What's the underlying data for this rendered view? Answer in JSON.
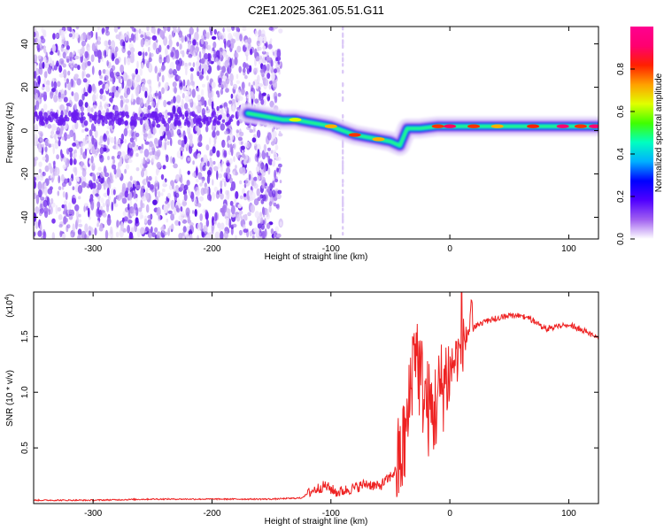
{
  "title": "C2E1.2025.361.05.51.G11",
  "colors": {
    "spectrogram_ramp": [
      "#ffffff",
      "#dcc8f8",
      "#b48cf2",
      "#7b2cf0",
      "#3a10e8",
      "#0000ff",
      "#00c0ff",
      "#00ffb0",
      "#4cff00",
      "#d8ff00",
      "#ffb000",
      "#ff3000",
      "#ff0080"
    ],
    "snr_line": "#ee2222",
    "axes": "#000000"
  },
  "chart_data": [
    {
      "type": "heatmap",
      "name": "spectrogram",
      "xlabel": "Height of straight line (km)",
      "ylabel": "Frequency (Hz)",
      "xlim": [
        -350,
        125
      ],
      "ylim": [
        -50,
        48
      ],
      "xticks": [
        -300,
        -200,
        -100,
        0,
        100
      ],
      "yticks": [
        -40,
        -20,
        0,
        20,
        40
      ],
      "noise_region_x": [
        -350,
        -142
      ],
      "ridge": [
        {
          "x": -170,
          "y": 8
        },
        {
          "x": -160,
          "y": 7
        },
        {
          "x": -150,
          "y": 6
        },
        {
          "x": -140,
          "y": 5
        },
        {
          "x": -130,
          "y": 5
        },
        {
          "x": -120,
          "y": 4
        },
        {
          "x": -110,
          "y": 3
        },
        {
          "x": -100,
          "y": 2
        },
        {
          "x": -90,
          "y": 0
        },
        {
          "x": -80,
          "y": -2
        },
        {
          "x": -70,
          "y": -3
        },
        {
          "x": -60,
          "y": -4
        },
        {
          "x": -50,
          "y": -5
        },
        {
          "x": -42,
          "y": -7
        },
        {
          "x": -36,
          "y": 1
        },
        {
          "x": -25,
          "y": 1
        },
        {
          "x": -10,
          "y": 2
        },
        {
          "x": 0,
          "y": 2
        },
        {
          "x": 20,
          "y": 2
        },
        {
          "x": 40,
          "y": 2
        },
        {
          "x": 60,
          "y": 2
        },
        {
          "x": 80,
          "y": 2
        },
        {
          "x": 100,
          "y": 2
        },
        {
          "x": 125,
          "y": 2
        }
      ],
      "colorbar": {
        "label": "Normalized spectral amplitude",
        "range": [
          0,
          1
        ],
        "ticks": [
          0.0,
          0.2,
          0.4,
          0.6,
          0.8
        ],
        "tick_labels": [
          "0.0",
          "0.2",
          "0.4",
          "0.6",
          "0.8"
        ]
      }
    },
    {
      "type": "line",
      "name": "snr",
      "xlabel": "Height of straight line (km)",
      "ylabel": "SNR (10 * v/v)",
      "exponent_label": "(x10",
      "exponent_power": "4",
      "exponent_close": ")",
      "xlim": [
        -350,
        125
      ],
      "ylim": [
        0,
        1.9
      ],
      "xticks": [
        -300,
        -200,
        -100,
        0,
        100
      ],
      "yticks": [
        0.5,
        1.0,
        1.5
      ],
      "ytick_labels": [
        "0.5",
        "1.0",
        "1.5"
      ],
      "series": [
        {
          "values": [
            [
              -350,
              0.03
            ],
            [
              -300,
              0.03
            ],
            [
              -250,
              0.04
            ],
            [
              -200,
              0.04
            ],
            [
              -150,
              0.04
            ],
            [
              -125,
              0.05
            ],
            [
              -115,
              0.12
            ],
            [
              -105,
              0.16
            ],
            [
              -95,
              0.1
            ],
            [
              -80,
              0.14
            ],
            [
              -70,
              0.18
            ],
            [
              -60,
              0.15
            ],
            [
              -52,
              0.22
            ],
            [
              -45,
              0.3
            ],
            [
              -40,
              0.45
            ],
            [
              -35,
              0.75
            ],
            [
              -32,
              1.2
            ],
            [
              -29,
              1.5
            ],
            [
              -26,
              1.2
            ],
            [
              -22,
              1.0
            ],
            [
              -18,
              0.85
            ],
            [
              -14,
              0.8
            ],
            [
              -10,
              0.95
            ],
            [
              -5,
              1.1
            ],
            [
              0,
              1.2
            ],
            [
              5,
              1.3
            ],
            [
              10,
              1.4
            ],
            [
              15,
              1.55
            ],
            [
              20,
              1.6
            ],
            [
              30,
              1.65
            ],
            [
              40,
              1.68
            ],
            [
              50,
              1.7
            ],
            [
              60,
              1.7
            ],
            [
              70,
              1.66
            ],
            [
              80,
              1.58
            ],
            [
              90,
              1.6
            ],
            [
              100,
              1.62
            ],
            [
              110,
              1.58
            ],
            [
              125,
              1.5
            ]
          ]
        }
      ]
    }
  ]
}
